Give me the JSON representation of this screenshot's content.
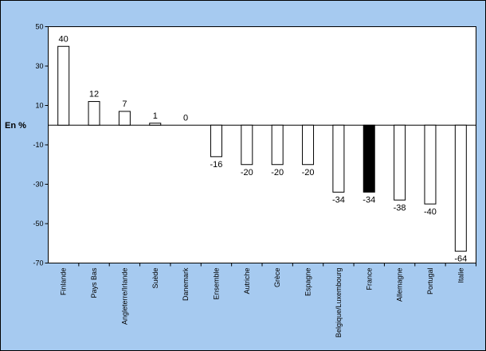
{
  "chart_data": {
    "type": "bar",
    "y_label": "En %",
    "categories": [
      "Finlande",
      "Pays Bas",
      "Angleterre/Irlande",
      "Suède",
      "Danemark",
      "Ensemble",
      "Autriche",
      "Grèce",
      "Espagne",
      "Belgique/Luxembourg",
      "France",
      "Allemagne",
      "Portugal",
      "Italie"
    ],
    "values": [
      40,
      12,
      7,
      1,
      0,
      -16,
      -20,
      -20,
      -20,
      -34,
      -34,
      -38,
      -40,
      -64
    ],
    "colors": [
      "#ffffff",
      "#ffffff",
      "#ffffff",
      "#ffffff",
      "#ffffff",
      "#ffffff",
      "#ffffff",
      "#ffffff",
      "#ffffff",
      "#ffffff",
      "#000000",
      "#ffffff",
      "#ffffff",
      "#ffffff"
    ],
    "ylim": [
      -70,
      50
    ],
    "yticks": [
      50,
      30,
      10,
      -10,
      -30,
      -50,
      -70
    ],
    "grid": false
  }
}
